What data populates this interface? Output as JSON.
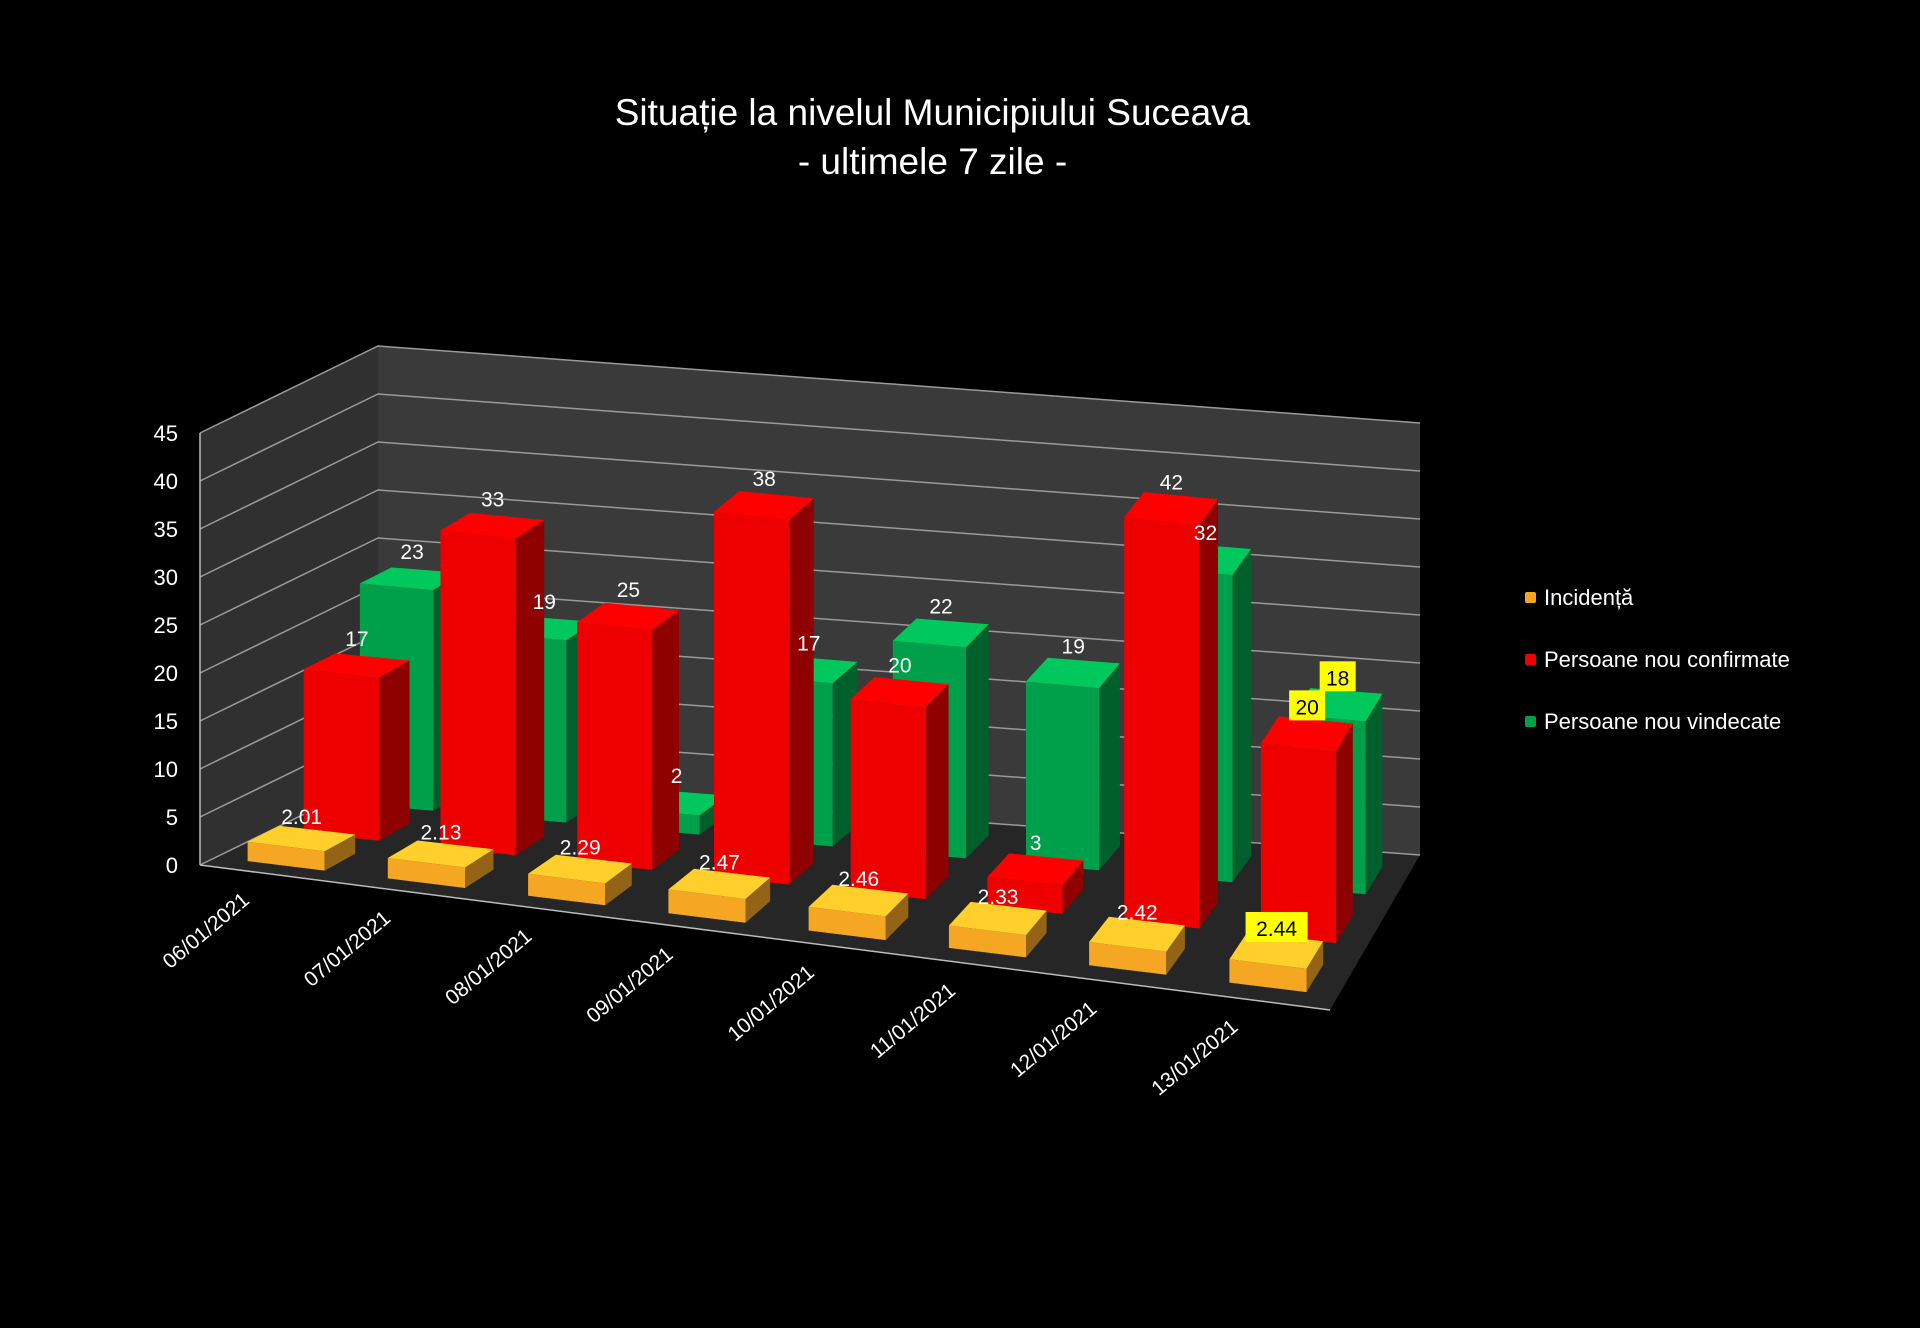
{
  "chart_data": {
    "type": "bar",
    "title": "Situație la nivelul Municipiului Suceava",
    "subtitle": "- ultimele 7 zile -",
    "categories": [
      "06/01/2021",
      "07/01/2021",
      "08/01/2021",
      "09/01/2021",
      "10/01/2021",
      "11/01/2021",
      "12/01/2021",
      "13/01/2021"
    ],
    "series": [
      {
        "name": "Incidență",
        "color": "#f5a623",
        "values": [
          2.01,
          2.13,
          2.29,
          2.47,
          2.46,
          2.33,
          2.42,
          2.44
        ],
        "labels": [
          "2.01",
          "2.13",
          "2.29",
          "2.47",
          "2.46",
          "2.33",
          "2.42",
          "2.44"
        ]
      },
      {
        "name": "Persoane nou confirmate",
        "color": "#ee0000",
        "values": [
          17,
          33,
          25,
          38,
          20,
          3,
          42,
          20
        ],
        "labels": [
          "17",
          "33",
          "25",
          "38",
          "20",
          "3",
          "42",
          "20"
        ]
      },
      {
        "name": "Persoane nou vindecate",
        "color": "#00a04a",
        "values": [
          23,
          19,
          2,
          17,
          22,
          19,
          32,
          18
        ],
        "labels": [
          "23",
          "19",
          "2",
          "17",
          "22",
          "19",
          "32",
          "18"
        ]
      }
    ],
    "ylim": [
      0,
      45
    ],
    "yticks": [
      "0",
      "5",
      "10",
      "15",
      "20",
      "25",
      "30",
      "35",
      "40",
      "45"
    ],
    "ytick_values": [
      0,
      5,
      10,
      15,
      20,
      25,
      30,
      35,
      40,
      45
    ],
    "grid": true,
    "legend": "right",
    "highlight_color": "#ffff00",
    "background_color": "#000000",
    "wall_color": "#3a3a3a",
    "floor_color": "#262626"
  }
}
